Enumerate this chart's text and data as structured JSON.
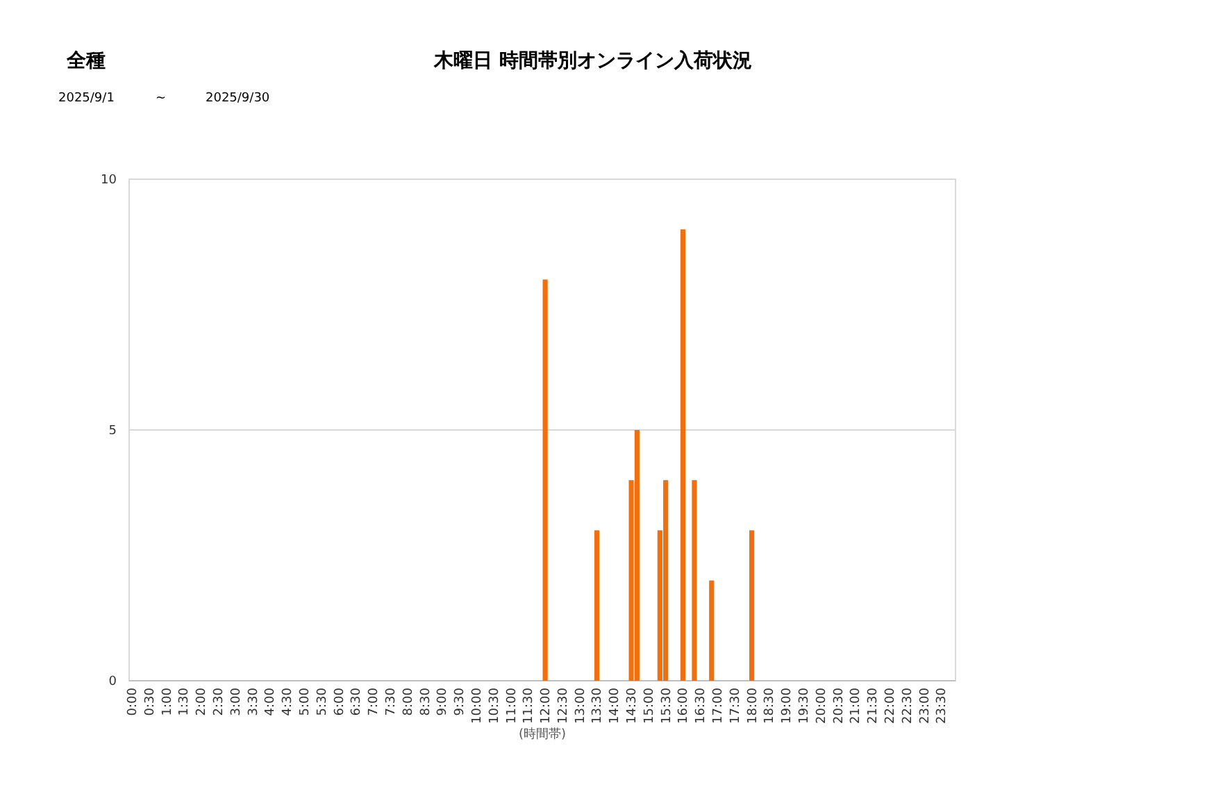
{
  "chart_data": {
    "type": "bar",
    "title": "木曜日 時間帯別オンライン入荷状況",
    "subtitle": "全種",
    "xlabel": "(時間帯)",
    "annotations": [
      "2025/9/1",
      "~",
      "2025/9/30"
    ],
    "x": [
      12,
      13.5,
      14.5,
      14.667,
      15.333,
      15.5,
      16,
      16.333,
      16.833,
      18
    ],
    "series": [
      {
        "color": "#f07010",
        "values": [
          8,
          3,
          4,
          5,
          3,
          4,
          9,
          4,
          2,
          3
        ]
      }
    ],
    "ylim": [
      0,
      10
    ],
    "yticks": [
      0,
      5,
      10
    ],
    "grid": "y",
    "xlim": [
      -0.083,
      23.917
    ],
    "xticks": [
      {
        "value": 0,
        "label": "0:00"
      },
      {
        "value": 0.5,
        "label": "0:30"
      },
      {
        "value": 1,
        "label": "1:00"
      },
      {
        "value": 1.5,
        "label": "1:30"
      },
      {
        "value": 2,
        "label": "2:00"
      },
      {
        "value": 2.5,
        "label": "2:30"
      },
      {
        "value": 3,
        "label": "3:00"
      },
      {
        "value": 3.5,
        "label": "3:30"
      },
      {
        "value": 4,
        "label": "4:00"
      },
      {
        "value": 4.5,
        "label": "4:30"
      },
      {
        "value": 5,
        "label": "5:00"
      },
      {
        "value": 5.5,
        "label": "5:30"
      },
      {
        "value": 6,
        "label": "6:00"
      },
      {
        "value": 6.5,
        "label": "6:30"
      },
      {
        "value": 7,
        "label": "7:00"
      },
      {
        "value": 7.5,
        "label": "7:30"
      },
      {
        "value": 8,
        "label": "8:00"
      },
      {
        "value": 8.5,
        "label": "8:30"
      },
      {
        "value": 9,
        "label": "9:00"
      },
      {
        "value": 9.5,
        "label": "9:30"
      },
      {
        "value": 10,
        "label": "10:00"
      },
      {
        "value": 10.5,
        "label": "10:30"
      },
      {
        "value": 11,
        "label": "11:00"
      },
      {
        "value": 11.5,
        "label": "11:30"
      },
      {
        "value": 12,
        "label": "12:00"
      },
      {
        "value": 12.5,
        "label": "12:30"
      },
      {
        "value": 13,
        "label": "13:00"
      },
      {
        "value": 13.5,
        "label": "13:30"
      },
      {
        "value": 14,
        "label": "14:00"
      },
      {
        "value": 14.5,
        "label": "14:30"
      },
      {
        "value": 15,
        "label": "15:00"
      },
      {
        "value": 15.5,
        "label": "15:30"
      },
      {
        "value": 16,
        "label": "16:00"
      },
      {
        "value": 16.5,
        "label": "16:30"
      },
      {
        "value": 17,
        "label": "17:00"
      },
      {
        "value": 17.5,
        "label": "17:30"
      },
      {
        "value": 18,
        "label": "18:00"
      },
      {
        "value": 18.5,
        "label": "18:30"
      },
      {
        "value": 19,
        "label": "19:00"
      },
      {
        "value": 19.5,
        "label": "19:30"
      },
      {
        "value": 20,
        "label": "20:00"
      },
      {
        "value": 20.5,
        "label": "20:30"
      },
      {
        "value": 21,
        "label": "21:00"
      },
      {
        "value": 21.5,
        "label": "21:30"
      },
      {
        "value": 22,
        "label": "22:00"
      },
      {
        "value": 22.5,
        "label": "22:30"
      },
      {
        "value": 23,
        "label": "23:00"
      },
      {
        "value": 23.5,
        "label": "23:30"
      }
    ]
  }
}
